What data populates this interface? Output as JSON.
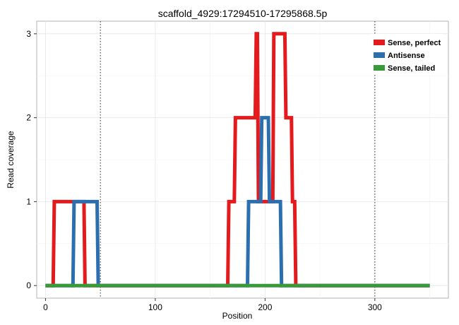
{
  "chart_data": {
    "type": "line",
    "title": "scaffold_4929:17294510-17295868.5p",
    "xlabel": "Position",
    "ylabel": "Read coverage",
    "xlim": [
      -8,
      367
    ],
    "ylim": [
      -0.15,
      3.15
    ],
    "x_ticks": [
      0,
      100,
      200,
      300
    ],
    "y_ticks": [
      0,
      1,
      2,
      3
    ],
    "vlines": [
      50,
      300
    ],
    "grid": true,
    "legend_position": "top-right",
    "step": true,
    "series": [
      {
        "name": "Sense, perfect",
        "color": "#E41A1C",
        "points": [
          [
            0,
            0
          ],
          [
            7,
            0
          ],
          [
            8,
            1
          ],
          [
            35,
            1
          ],
          [
            36,
            0
          ],
          [
            166,
            0
          ],
          [
            167,
            1
          ],
          [
            172,
            1
          ],
          [
            173,
            2
          ],
          [
            191,
            2
          ],
          [
            192,
            3
          ],
          [
            193,
            3
          ],
          [
            194,
            1
          ],
          [
            207,
            1
          ],
          [
            208,
            3
          ],
          [
            218,
            3
          ],
          [
            219,
            2
          ],
          [
            224,
            2
          ],
          [
            225,
            1
          ],
          [
            227,
            1
          ],
          [
            228,
            0
          ],
          [
            350,
            0
          ]
        ]
      },
      {
        "name": "Antisense",
        "color": "#2C6FAF",
        "points": [
          [
            0,
            0
          ],
          [
            25,
            0
          ],
          [
            26,
            1
          ],
          [
            47,
            1
          ],
          [
            48,
            0
          ],
          [
            184,
            0
          ],
          [
            185,
            1
          ],
          [
            196,
            1
          ],
          [
            197,
            2
          ],
          [
            203,
            2
          ],
          [
            204,
            1
          ],
          [
            214,
            1
          ],
          [
            215,
            0
          ],
          [
            350,
            0
          ]
        ]
      },
      {
        "name": "Sense, tailed",
        "color": "#3A9A3A",
        "points": [
          [
            0,
            0
          ],
          [
            350,
            0
          ]
        ]
      }
    ]
  }
}
